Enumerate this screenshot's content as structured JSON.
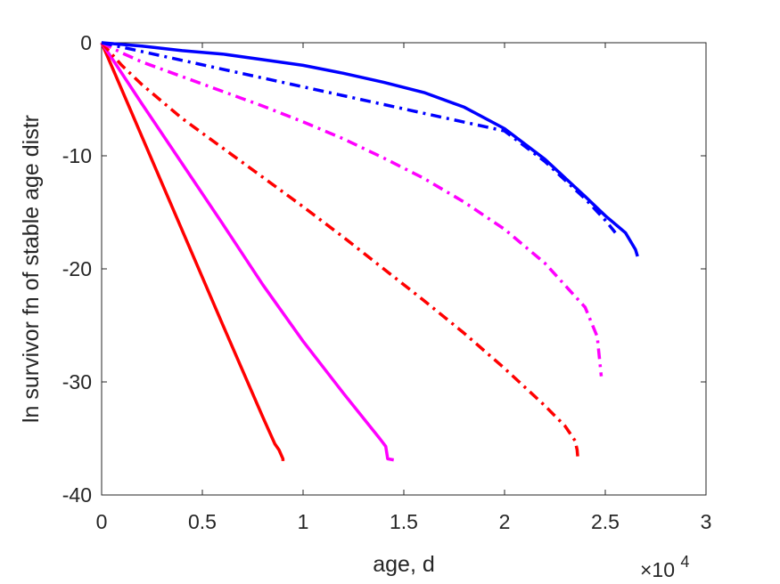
{
  "chart_data": {
    "type": "line",
    "title": "",
    "xlabel": "age, d",
    "ylabel": "ln survivor fn of stable age distr",
    "x_exponent_label": {
      "base": "×10",
      "exponent": "4"
    },
    "xlim": [
      0,
      30000
    ],
    "ylim": [
      -40,
      0
    ],
    "xticks": [
      0,
      5000,
      10000,
      15000,
      20000,
      25000,
      30000
    ],
    "xtick_labels": [
      "0",
      "0.5",
      "1",
      "1.5",
      "2",
      "2.5",
      "3"
    ],
    "yticks": [
      0,
      -10,
      -20,
      -30,
      -40
    ],
    "ytick_labels": [
      "0",
      "-10",
      "-20",
      "-30",
      "-40"
    ],
    "grid": false,
    "legend": "none",
    "series": [
      {
        "color": "#ff0000",
        "style": "solid",
        "x": [
          0,
          2000,
          4000,
          6000,
          8000,
          8600,
          8800,
          9000,
          9000
        ],
        "y": [
          0,
          -8.3,
          -16.6,
          -24.9,
          -33.1,
          -35.5,
          -36.0,
          -36.8,
          -37.0
        ]
      },
      {
        "color": "#ff00ff",
        "style": "solid",
        "x": [
          0,
          2000,
          4000,
          6000,
          8000,
          10000,
          12000,
          13800,
          14100,
          14200,
          14500
        ],
        "y": [
          0,
          -5.4,
          -10.7,
          -16.0,
          -21.4,
          -26.4,
          -31.0,
          -35.0,
          -35.7,
          -36.8,
          -36.9
        ]
      },
      {
        "color": "#ff0000",
        "style": "dashdot",
        "x": [
          0,
          1000,
          2000,
          4000,
          6000,
          8000,
          10000,
          12000,
          14000,
          16000,
          18000,
          20000,
          22000,
          23000,
          23500,
          23600,
          23650
        ],
        "y": [
          0,
          -2.0,
          -3.7,
          -6.7,
          -9.3,
          -11.9,
          -14.5,
          -17.2,
          -20.0,
          -22.8,
          -25.7,
          -28.8,
          -32.1,
          -33.9,
          -35.2,
          -36.0,
          -37.0
        ]
      },
      {
        "color": "#ff00ff",
        "style": "dashdot",
        "x": [
          0,
          1000,
          2000,
          4000,
          6000,
          8000,
          10000,
          12000,
          14000,
          16000,
          18000,
          20000,
          22000,
          24000,
          24600,
          24800
        ],
        "y": [
          0,
          -0.9,
          -1.7,
          -3.0,
          -4.3,
          -5.6,
          -7.0,
          -8.5,
          -10.2,
          -12.0,
          -14.1,
          -16.5,
          -19.5,
          -23.4,
          -26.0,
          -29.5
        ]
      },
      {
        "color": "#0000ff",
        "style": "dashdot",
        "x": [
          0,
          20000,
          22000,
          24000,
          25000,
          25500
        ],
        "y": [
          0,
          -7.8,
          -10.5,
          -13.8,
          -15.7,
          -16.8
        ]
      },
      {
        "color": "#0000ff",
        "style": "solid",
        "x": [
          0,
          2000,
          4000,
          6000,
          8000,
          10000,
          12000,
          14000,
          16000,
          18000,
          20000,
          22000,
          24000,
          25000,
          26000,
          26500,
          26600
        ],
        "y": [
          0,
          -0.3,
          -0.7,
          -1.0,
          -1.5,
          -2.0,
          -2.7,
          -3.5,
          -4.4,
          -5.7,
          -7.6,
          -10.3,
          -13.6,
          -15.3,
          -16.8,
          -18.3,
          -18.9
        ]
      }
    ]
  }
}
